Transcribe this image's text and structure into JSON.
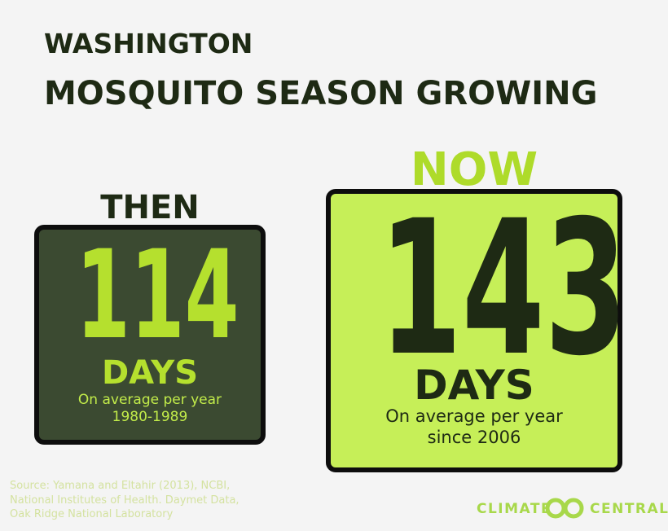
{
  "header": {
    "region": "WASHINGTON",
    "title": "MOSQUITO SEASON GROWING"
  },
  "then": {
    "label": "THEN",
    "value": 114,
    "unit": "DAYS",
    "note": "On average per year",
    "period": "1980-1989"
  },
  "now": {
    "label": "NOW",
    "value": 143,
    "unit": "DAYS",
    "note": "On average per year",
    "period": "since 2006"
  },
  "source": "Source: Yamana and Eltahir (2013), NCBI, National Institutes of Health. Daymet Data, Oak Ridge National Laboratory",
  "brand": {
    "left": "CLIMATE",
    "right": "CENTRAL"
  }
}
